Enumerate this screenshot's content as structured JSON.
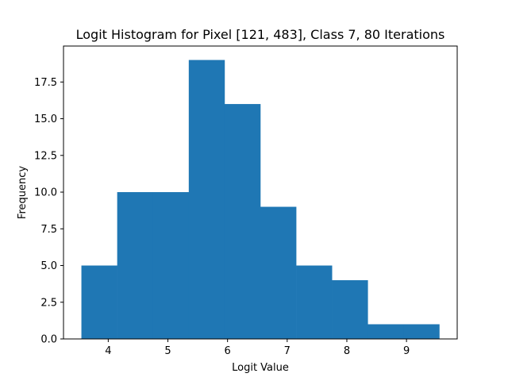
{
  "chart_data": {
    "type": "bar",
    "title": "Logit Histogram for Pixel [121, 483], Class 7, 80 Iterations",
    "xlabel": "Logit Value",
    "ylabel": "Frequency",
    "bin_edges": [
      3.55,
      4.15,
      4.75,
      5.35,
      5.95,
      6.55,
      7.15,
      7.75,
      8.35,
      8.95,
      9.55
    ],
    "values": [
      5,
      10,
      10,
      19,
      16,
      9,
      5,
      4,
      1,
      1
    ],
    "xlim": [
      3.25,
      9.85
    ],
    "ylim": [
      0,
      19.95
    ],
    "xticks": [
      4,
      5,
      6,
      7,
      8,
      9
    ],
    "xtick_labels": [
      "4",
      "5",
      "6",
      "7",
      "8",
      "9"
    ],
    "yticks": [
      0,
      2.5,
      5,
      7.5,
      10,
      12.5,
      15,
      17.5
    ],
    "ytick_labels": [
      "0.0",
      "2.5",
      "5.0",
      "7.5",
      "10.0",
      "12.5",
      "15.0",
      "17.5"
    ],
    "bar_color": "#1f77b4",
    "grid": false,
    "legend": "none"
  }
}
